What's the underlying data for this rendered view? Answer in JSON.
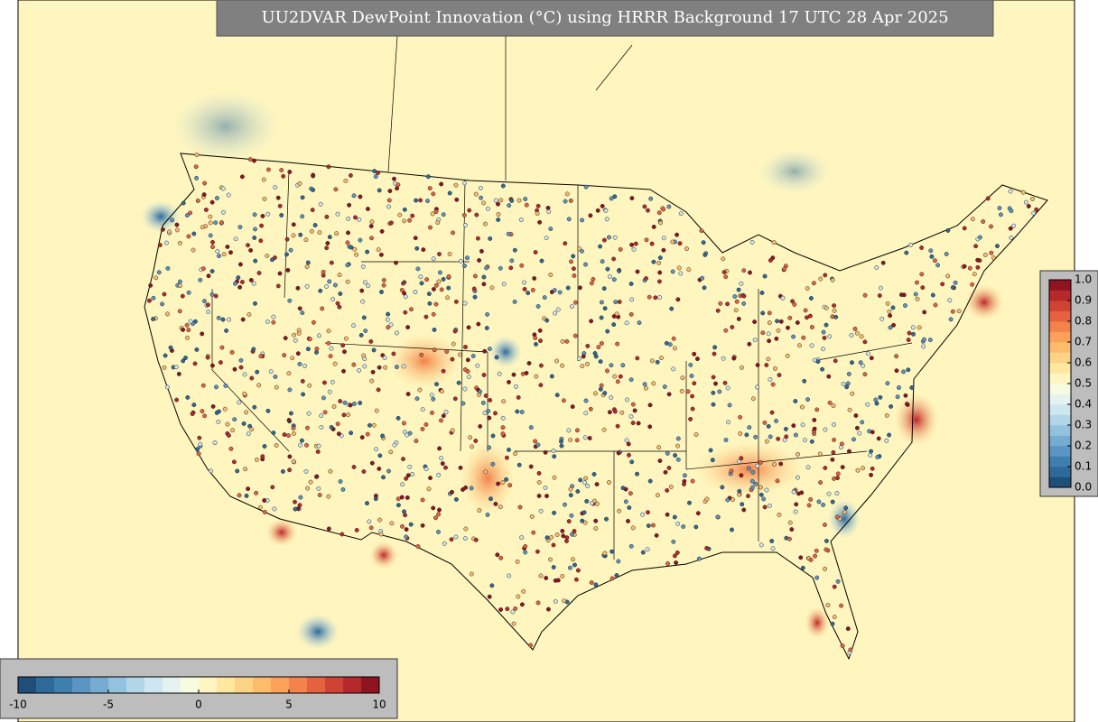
{
  "title": "UU2DVAR DewPoint Innovation (°C) using HRRR Background 17 UTC 28 Apr 2025",
  "colorbars": [
    {
      "orientation": "horizontal",
      "lim": [
        -10,
        10
      ],
      "ticks": [
        -10,
        -5,
        0,
        5,
        10
      ],
      "colors": [
        "#1f4e79",
        "#2d6a9a",
        "#3f7fb0",
        "#5a95c4",
        "#76abd2",
        "#93c2de",
        "#b1d6e8",
        "#cde6ef",
        "#e5f2f0",
        "#f7fbe0",
        "#fff5c2",
        "#fee8a0",
        "#fdd385",
        "#fdbb6c",
        "#fca05a",
        "#f4824b",
        "#e5613f",
        "#d04234",
        "#b5292a",
        "#8e1420"
      ]
    },
    {
      "orientation": "vertical",
      "lim": [
        0,
        1
      ],
      "ticks": [
        {
          "value": 0,
          "label": "0.0"
        },
        0.1,
        0.2,
        0.3,
        0.4,
        0.5,
        0.6,
        0.7,
        0.8,
        0.9,
        {
          "value": 1,
          "label": "1.0"
        }
      ],
      "colors": [
        "#1f4e79",
        "#2d6a9a",
        "#3f7fb0",
        "#5a95c4",
        "#76abd2",
        "#93c2de",
        "#b1d6e8",
        "#cde6ef",
        "#e5f2f0",
        "#f7fbe0",
        "#fff5c2",
        "#fee8a0",
        "#fdd385",
        "#fdbb6c",
        "#fca05a",
        "#f4824b",
        "#e5613f",
        "#d04234",
        "#b5292a",
        "#8e1420"
      ]
    }
  ]
}
